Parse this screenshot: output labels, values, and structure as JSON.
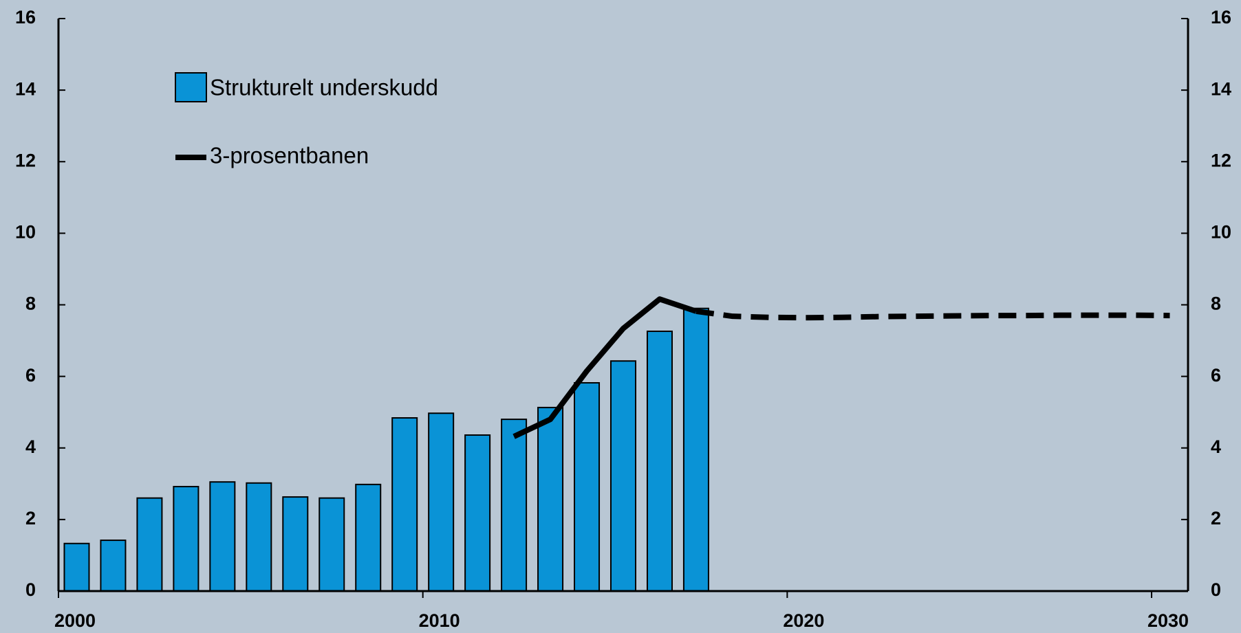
{
  "chart_data": {
    "type": "bar",
    "xlim": [
      2000,
      2031
    ],
    "xticks": [
      2000,
      2010,
      2020,
      2030
    ],
    "ylim": [
      0,
      16
    ],
    "yticks": [
      0,
      2,
      4,
      6,
      8,
      10,
      12,
      14,
      16
    ],
    "y2lim": [
      0,
      16
    ],
    "y2ticks": [
      0,
      2,
      4,
      6,
      8,
      10,
      12,
      14,
      16
    ],
    "series": [
      {
        "name": "Strukturelt underskudd",
        "type": "bar",
        "color": "#0a93d6",
        "x": [
          2000,
          2001,
          2002,
          2003,
          2004,
          2005,
          2006,
          2007,
          2008,
          2009,
          2010,
          2011,
          2012,
          2013,
          2014,
          2015,
          2016,
          2017
        ],
        "values": [
          1.33,
          1.42,
          2.6,
          2.92,
          3.05,
          3.02,
          2.63,
          2.6,
          2.98,
          4.84,
          4.97,
          4.36,
          4.8,
          5.13,
          5.82,
          6.43,
          7.26,
          7.9
        ]
      },
      {
        "name": "3-prosentbanen",
        "type": "line",
        "color": "#000000",
        "forecast_from": 2017.5,
        "x": [
          2012.5,
          2013.5,
          2014.5,
          2015.5,
          2016.5,
          2017.5,
          2018.5,
          2019.5,
          2020.5,
          2021.5,
          2022.5,
          2023.5,
          2024.5,
          2025.5,
          2026.5,
          2027.5,
          2028.5,
          2029.5,
          2030.5
        ],
        "values": [
          4.32,
          4.8,
          6.15,
          7.34,
          8.16,
          7.82,
          7.68,
          7.65,
          7.64,
          7.65,
          7.67,
          7.68,
          7.69,
          7.7,
          7.7,
          7.71,
          7.71,
          7.71,
          7.7
        ]
      }
    ]
  }
}
